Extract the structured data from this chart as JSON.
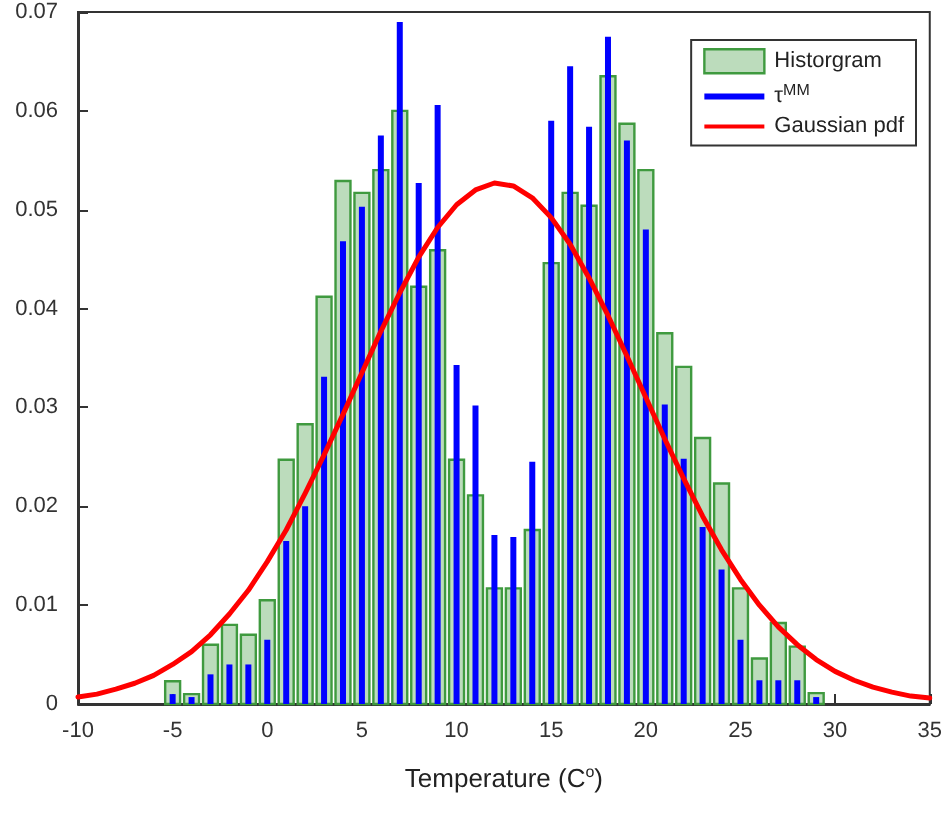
{
  "chart_data": {
    "type": "histogram",
    "xlabel": "Temperature (C$^{o}$)",
    "bins": [
      -5.5,
      -4.5,
      -3.5,
      -2.5,
      -1.5,
      -0.5,
      0.5,
      1.5,
      2.5,
      3.5,
      4.5,
      5.5,
      6.5,
      7.5,
      8.5,
      9.5,
      10.5,
      11.5,
      12.5,
      13.5,
      14.5,
      15.5,
      16.5,
      17.5,
      18.5,
      19.5,
      20.5,
      21.5,
      22.5,
      23.5,
      24.5,
      25.5,
      26.5,
      27.5,
      28.5,
      29.5
    ],
    "series": [
      {
        "name": "Historgram",
        "color": "#3f9a3f",
        "values": [
          0.0023,
          0.001,
          0.006,
          0.008,
          0.007,
          0.0105,
          0.0247,
          0.0283,
          0.0412,
          0.0529,
          0.0517,
          0.054,
          0.06,
          0.0422,
          0.0459,
          0.0247,
          0.0211,
          0.0117,
          0.0117,
          0.0176,
          0.0446,
          0.0517,
          0.0504,
          0.0635,
          0.0587,
          0.054,
          0.0375,
          0.0341,
          0.0269,
          0.0223,
          0.0117,
          0.0046,
          0.0082,
          0.0058,
          0.0011
        ]
      },
      {
        "name": "τ$^{MM}$",
        "type": "bar",
        "color": "#0000ff",
        "x": [
          -5,
          -4,
          -3,
          -2,
          -1,
          0,
          1,
          2,
          3,
          4,
          5,
          6,
          7,
          8,
          9,
          10,
          11,
          12,
          13,
          14,
          15,
          16,
          17,
          18,
          19,
          20,
          21,
          22,
          23,
          24,
          25,
          26,
          27,
          28,
          29
        ],
        "values": [
          0.001,
          0.0007,
          0.003,
          0.004,
          0.004,
          0.0065,
          0.0165,
          0.02,
          0.0331,
          0.0468,
          0.0503,
          0.0575,
          0.069,
          0.0527,
          0.0606,
          0.0343,
          0.0302,
          0.0171,
          0.0169,
          0.0245,
          0.059,
          0.0645,
          0.0584,
          0.0675,
          0.057,
          0.048,
          0.0303,
          0.0248,
          0.0179,
          0.0136,
          0.0065,
          0.0024,
          0.0024,
          0.0024,
          0.0007
        ]
      },
      {
        "name": "Gaussian pdf",
        "type": "line",
        "color": "#ff0000",
        "x": [
          -10,
          -9,
          -8,
          -7,
          -6,
          -5,
          -4,
          -3,
          -2,
          -1,
          0,
          1,
          2,
          3,
          4,
          5,
          6,
          7,
          8,
          9,
          10,
          11,
          12,
          13,
          14,
          15,
          16,
          17,
          18,
          19,
          20,
          21,
          22,
          23,
          24,
          25,
          26,
          27,
          28,
          29,
          30,
          31,
          32,
          33,
          34,
          35
        ],
        "values": [
          0.0007,
          0.001,
          0.0015,
          0.0021,
          0.0029,
          0.004,
          0.0053,
          0.007,
          0.0091,
          0.0115,
          0.0144,
          0.0176,
          0.0213,
          0.0252,
          0.0293,
          0.0335,
          0.0377,
          0.0416,
          0.0452,
          0.0482,
          0.0505,
          0.052,
          0.0527,
          0.0524,
          0.0512,
          0.0492,
          0.0465,
          0.0431,
          0.0393,
          0.0352,
          0.031,
          0.0268,
          0.0228,
          0.019,
          0.0156,
          0.0126,
          0.01,
          0.0078,
          0.006,
          0.0045,
          0.0033,
          0.0024,
          0.0017,
          0.0012,
          0.0008,
          0.0006
        ]
      }
    ],
    "xlim": [
      -10,
      35
    ],
    "xticks": [
      -10,
      -5,
      0,
      5,
      10,
      15,
      20,
      25,
      30,
      35
    ],
    "ylim": [
      0,
      0.07
    ],
    "yticks": [
      0,
      0.01,
      0.02,
      0.03,
      0.04,
      0.05,
      0.06,
      0.07
    ],
    "grid": false,
    "legend": "top right"
  }
}
